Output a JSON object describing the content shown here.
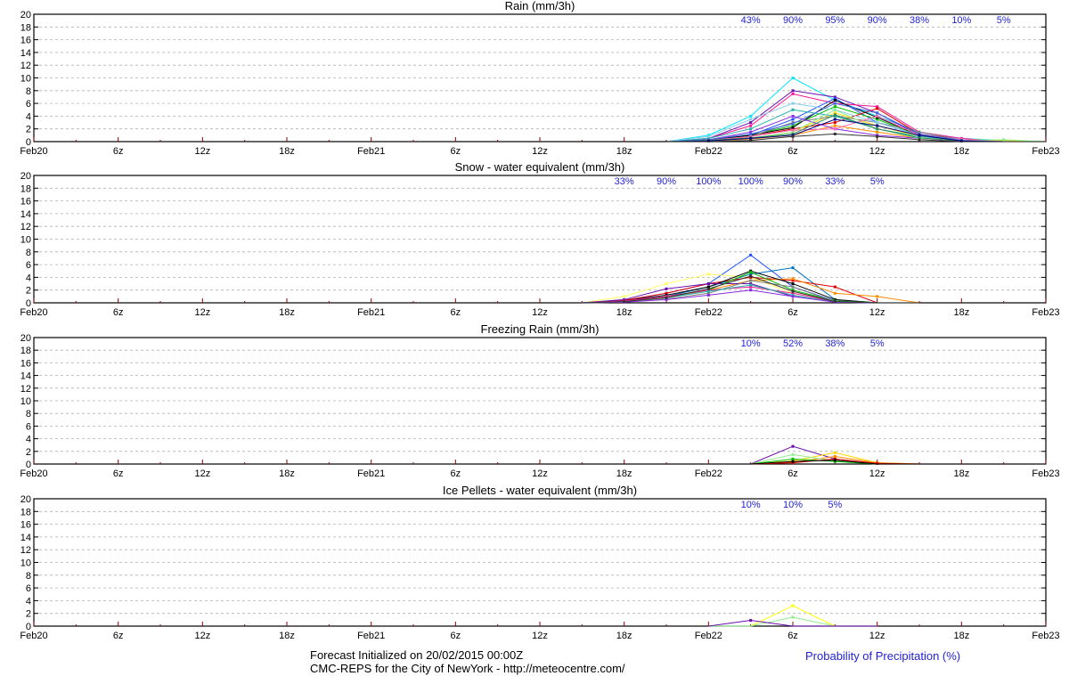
{
  "footer": {
    "line1": "Forecast Initialized on 20/02/2015 00:00Z",
    "line2": "CMC-REPS for the City of NewYork - http://meteocentre.com/",
    "legend": "Probability of Precipitation (%)"
  },
  "colors": {
    "probability_text": "#1f1fd6",
    "grid": "#b0b0b0",
    "axis": "#000000"
  },
  "chart_data": [
    {
      "type": "line",
      "title": "Rain (mm/3h)",
      "x_tick_labels": [
        "Feb20",
        "6z",
        "12z",
        "18z",
        "Feb21",
        "6z",
        "12z",
        "18z",
        "Feb22",
        "6z",
        "12z",
        "18z",
        "Feb23"
      ],
      "y_tick_labels": [
        "0",
        "2",
        "4",
        "6",
        "8",
        "10",
        "12",
        "14",
        "16",
        "18",
        "20"
      ],
      "xlim_hours": [
        0,
        72
      ],
      "ylim": [
        0,
        20
      ],
      "grid": true,
      "probability_labels": [
        {
          "hour": 51,
          "text": "43%"
        },
        {
          "hour": 54,
          "text": "90%"
        },
        {
          "hour": 57,
          "text": "95%"
        },
        {
          "hour": 60,
          "text": "90%"
        },
        {
          "hour": 63,
          "text": "38%"
        },
        {
          "hour": 66,
          "text": "10%"
        },
        {
          "hour": 69,
          "text": "5%"
        }
      ],
      "x_hours": [
        45,
        48,
        51,
        54,
        57,
        60,
        63,
        66,
        69,
        72
      ],
      "series": [
        {
          "color": "#00e5ff",
          "values": [
            0,
            1.0,
            4.0,
            10.0,
            6.5,
            4.0,
            1.5,
            0.5,
            0.2,
            0
          ]
        },
        {
          "color": "#6a0dad",
          "values": [
            0,
            0.5,
            3.0,
            8.0,
            7.0,
            4.5,
            1.0,
            0.3,
            0,
            0
          ]
        },
        {
          "color": "#ff1493",
          "values": [
            0,
            0.5,
            2.5,
            7.5,
            6.0,
            5.5,
            1.5,
            0.5,
            0,
            0
          ]
        },
        {
          "color": "#1e50ff",
          "values": [
            0,
            0.3,
            1.0,
            3.5,
            6.8,
            3.0,
            1.0,
            0.2,
            0,
            0
          ]
        },
        {
          "color": "#00c000",
          "values": [
            0,
            0.2,
            1.0,
            2.5,
            5.5,
            3.5,
            1.0,
            0.2,
            0,
            0
          ]
        },
        {
          "color": "#e00000",
          "values": [
            0,
            0.2,
            0.8,
            2.0,
            3.0,
            5.2,
            1.2,
            0.3,
            0,
            0
          ]
        },
        {
          "color": "#ffd700",
          "values": [
            0,
            0.1,
            0.5,
            1.5,
            4.5,
            2.5,
            0.8,
            0.3,
            0.2,
            0
          ]
        },
        {
          "color": "#000000",
          "values": [
            0,
            0.2,
            1.0,
            2.2,
            6.5,
            3.8,
            1.0,
            0.2,
            0,
            0
          ]
        },
        {
          "color": "#808080",
          "values": [
            0,
            0.2,
            0.8,
            3.0,
            4.0,
            3.0,
            1.5,
            0.3,
            0,
            0
          ]
        },
        {
          "color": "#ff8c00",
          "values": [
            0,
            0.1,
            0.4,
            1.0,
            2.5,
            1.5,
            0.5,
            0.1,
            0,
            0
          ]
        },
        {
          "color": "#8a2be2",
          "values": [
            0,
            0.3,
            1.5,
            4.0,
            2.0,
            1.0,
            0.5,
            0.1,
            0,
            0
          ]
        },
        {
          "color": "#20b2aa",
          "values": [
            0,
            0.5,
            2.0,
            5.0,
            4.0,
            2.0,
            0.8,
            0.2,
            0,
            0
          ]
        },
        {
          "color": "#87ceeb",
          "values": [
            0,
            0.8,
            3.5,
            6.0,
            5.0,
            3.0,
            1.0,
            0.3,
            0,
            0
          ]
        },
        {
          "color": "#90ee90",
          "values": [
            0,
            0.1,
            0.5,
            1.5,
            5.0,
            2.0,
            0.5,
            0.2,
            0.3,
            0
          ]
        },
        {
          "color": "#ff69b4",
          "values": [
            0,
            0.2,
            0.8,
            1.8,
            2.0,
            4.0,
            1.0,
            0.3,
            0,
            0
          ]
        },
        {
          "color": "#4169e1",
          "values": [
            0,
            0.3,
            1.2,
            2.8,
            6.0,
            4.5,
            1.2,
            0.2,
            0,
            0
          ]
        },
        {
          "color": "#2e8b57",
          "values": [
            0,
            0.2,
            0.6,
            1.2,
            4.2,
            2.0,
            0.6,
            0.1,
            0,
            0
          ]
        },
        {
          "color": "#000080",
          "values": [
            0,
            0.1,
            0.5,
            1.0,
            3.5,
            2.5,
            1.0,
            0.1,
            0,
            0
          ]
        },
        {
          "color": "#333333",
          "values": [
            0,
            0,
            0.2,
            0.8,
            1.2,
            0.8,
            0.3,
            0,
            0,
            0
          ]
        }
      ]
    },
    {
      "type": "line",
      "title": "Snow - water equivalent (mm/3h)",
      "x_tick_labels": [
        "Feb20",
        "6z",
        "12z",
        "18z",
        "Feb21",
        "6z",
        "12z",
        "18z",
        "Feb22",
        "6z",
        "12z",
        "18z",
        "Feb23"
      ],
      "y_tick_labels": [
        "0",
        "2",
        "4",
        "6",
        "8",
        "10",
        "12",
        "14",
        "16",
        "18",
        "20"
      ],
      "xlim_hours": [
        0,
        72
      ],
      "ylim": [
        0,
        20
      ],
      "grid": true,
      "probability_labels": [
        {
          "hour": 42,
          "text": "33%"
        },
        {
          "hour": 45,
          "text": "90%"
        },
        {
          "hour": 48,
          "text": "100%"
        },
        {
          "hour": 51,
          "text": "100%"
        },
        {
          "hour": 54,
          "text": "90%"
        },
        {
          "hour": 57,
          "text": "33%"
        },
        {
          "hour": 60,
          "text": "5%"
        }
      ],
      "x_hours": [
        39,
        42,
        45,
        48,
        51,
        54,
        57,
        60,
        63
      ],
      "series": [
        {
          "color": "#1e50ff",
          "values": [
            0,
            0.3,
            1.5,
            3.0,
            7.5,
            2.5,
            0.3,
            0,
            0
          ]
        },
        {
          "color": "#ffff66",
          "values": [
            0,
            1.0,
            3.0,
            4.5,
            4.0,
            1.5,
            0.3,
            0,
            0
          ]
        },
        {
          "color": "#0070c0",
          "values": [
            0,
            0.2,
            1.0,
            2.5,
            4.5,
            5.5,
            0.5,
            0,
            0
          ]
        },
        {
          "color": "#e00000",
          "values": [
            0,
            0.4,
            1.5,
            3.0,
            4.0,
            3.5,
            2.5,
            0,
            0
          ]
        },
        {
          "color": "#ff8c00",
          "values": [
            0,
            0.1,
            0.8,
            2.0,
            3.5,
            3.8,
            1.5,
            1.0,
            0
          ]
        },
        {
          "color": "#000000",
          "values": [
            0,
            0.3,
            1.2,
            2.5,
            5.0,
            3.0,
            0.5,
            0,
            0
          ]
        },
        {
          "color": "#6a0dad",
          "values": [
            0,
            0.5,
            2.2,
            3.0,
            3.0,
            1.0,
            0.2,
            0,
            0
          ]
        },
        {
          "color": "#00c000",
          "values": [
            0,
            0.2,
            1.0,
            2.0,
            4.8,
            2.0,
            0.3,
            0,
            0
          ]
        },
        {
          "color": "#ff1493",
          "values": [
            0,
            0.3,
            1.0,
            2.0,
            2.5,
            1.5,
            0.2,
            0,
            0
          ]
        },
        {
          "color": "#808080",
          "values": [
            0,
            0.1,
            0.6,
            1.5,
            3.5,
            2.5,
            0.2,
            0,
            0
          ]
        },
        {
          "color": "#20b2aa",
          "values": [
            0,
            0.2,
            0.8,
            1.8,
            2.8,
            1.2,
            0.1,
            0,
            0
          ]
        },
        {
          "color": "#8a2be2",
          "values": [
            0,
            0.1,
            0.5,
            1.2,
            2.0,
            1.0,
            0.1,
            0,
            0
          ]
        },
        {
          "color": "#333333",
          "values": [
            0,
            0.2,
            0.8,
            2.2,
            4.2,
            1.8,
            0.2,
            0,
            0
          ]
        }
      ]
    },
    {
      "type": "line",
      "title": "Freezing Rain (mm/3h)",
      "x_tick_labels": [
        "Feb20",
        "6z",
        "12z",
        "18z",
        "Feb21",
        "6z",
        "12z",
        "18z",
        "Feb22",
        "6z",
        "12z",
        "18z",
        "Feb23"
      ],
      "y_tick_labels": [
        "0",
        "2",
        "4",
        "6",
        "8",
        "10",
        "12",
        "14",
        "16",
        "18",
        "20"
      ],
      "xlim_hours": [
        0,
        72
      ],
      "ylim": [
        0,
        20
      ],
      "grid": true,
      "probability_labels": [
        {
          "hour": 51,
          "text": "10%"
        },
        {
          "hour": 54,
          "text": "52%"
        },
        {
          "hour": 57,
          "text": "38%"
        },
        {
          "hour": 60,
          "text": "5%"
        }
      ],
      "x_hours": [
        48,
        51,
        54,
        57,
        60,
        63
      ],
      "series": [
        {
          "color": "#6a0dad",
          "values": [
            0,
            0,
            2.8,
            0.8,
            0.1,
            0
          ]
        },
        {
          "color": "#ffd700",
          "values": [
            0,
            0,
            0.5,
            1.8,
            0.2,
            0
          ]
        },
        {
          "color": "#ff8c00",
          "values": [
            0,
            0,
            0.3,
            1.2,
            0.2,
            0
          ]
        },
        {
          "color": "#90ee90",
          "values": [
            0,
            0,
            1.5,
            0.5,
            0,
            0
          ]
        },
        {
          "color": "#00c000",
          "values": [
            0,
            0,
            0.8,
            0.4,
            0,
            0
          ]
        },
        {
          "color": "#e00000",
          "values": [
            0,
            0,
            0.2,
            0.8,
            0.1,
            0
          ]
        },
        {
          "color": "#000000",
          "values": [
            0,
            0,
            0.4,
            0.6,
            0,
            0
          ]
        }
      ]
    },
    {
      "type": "line",
      "title": "Ice Pellets - water equivalent (mm/3h)",
      "x_tick_labels": [
        "Feb20",
        "6z",
        "12z",
        "18z",
        "Feb21",
        "6z",
        "12z",
        "18z",
        "Feb22",
        "6z",
        "12z",
        "18z",
        "Feb23"
      ],
      "y_tick_labels": [
        "0",
        "2",
        "4",
        "6",
        "8",
        "10",
        "12",
        "14",
        "16",
        "18",
        "20"
      ],
      "xlim_hours": [
        0,
        72
      ],
      "ylim": [
        0,
        20
      ],
      "grid": true,
      "probability_labels": [
        {
          "hour": 51,
          "text": "10%"
        },
        {
          "hour": 54,
          "text": "10%"
        },
        {
          "hour": 57,
          "text": "5%"
        }
      ],
      "x_hours": [
        48,
        51,
        54,
        57,
        60
      ],
      "series": [
        {
          "color": "#ffff00",
          "values": [
            0,
            0,
            3.2,
            0,
            0
          ]
        },
        {
          "color": "#90ee90",
          "values": [
            0,
            0,
            1.4,
            0,
            0
          ]
        },
        {
          "color": "#6a0dad",
          "values": [
            0,
            0.9,
            0,
            0,
            0
          ]
        }
      ]
    }
  ]
}
